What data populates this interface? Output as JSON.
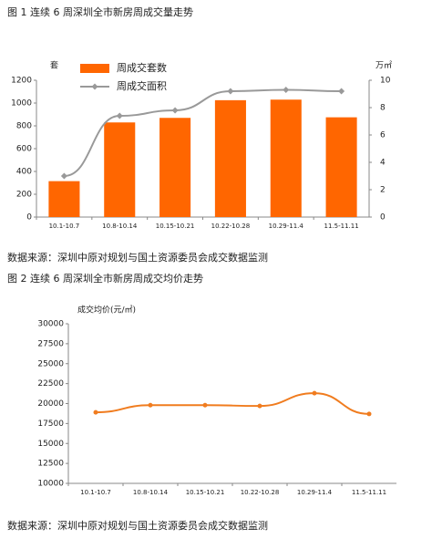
{
  "chart_data": [
    {
      "type": "bar_line",
      "title": "图 1  连续 6 周深圳全市新房周成交量走势",
      "ylabel": "套",
      "y2label": "万㎡",
      "categories": [
        "10.1-10.7",
        "10.8-10.14",
        "10.15-10.21",
        "10.22-10.28",
        "10.29-11.4",
        "11.5-11.11"
      ],
      "series": [
        {
          "name": "周成交套数",
          "type": "bar",
          "color": "#ff6600",
          "values": [
            315,
            830,
            870,
            1025,
            1030,
            875
          ]
        },
        {
          "name": "周成交面积",
          "type": "line",
          "axis": "y2",
          "color": "#999999",
          "values": [
            3.0,
            7.4,
            7.8,
            9.2,
            9.3,
            9.2
          ]
        }
      ],
      "ylim": [
        0,
        1200
      ],
      "yticks": [
        0,
        200,
        400,
        600,
        800,
        1000,
        1200
      ],
      "y2lim": [
        0,
        10
      ],
      "y2ticks": [
        0,
        2,
        4,
        6,
        8,
        10
      ],
      "source": "数据来源：深圳中原对规划与国土资源委员会成交数据监测"
    },
    {
      "type": "line",
      "title": "图 2  连续 6 周深圳全市新房周成交均价走势",
      "ylabel": "成交均价(元/㎡)",
      "categories": [
        "10.1-10.7",
        "10.8-10.14",
        "10.15-10.21",
        "10.22-10.28",
        "10.29-11.4",
        "11.5-11.11"
      ],
      "series": [
        {
          "name": "成交均价",
          "type": "line",
          "color": "#f07c1f",
          "values": [
            18900,
            19800,
            19800,
            19700,
            21300,
            18700
          ]
        }
      ],
      "ylim": [
        10000,
        30000
      ],
      "yticks": [
        10000,
        12500,
        15000,
        17500,
        20000,
        22500,
        25000,
        27500,
        30000
      ],
      "source": "数据来源：深圳中原对规划与国土资源委员会成交数据监测"
    }
  ]
}
